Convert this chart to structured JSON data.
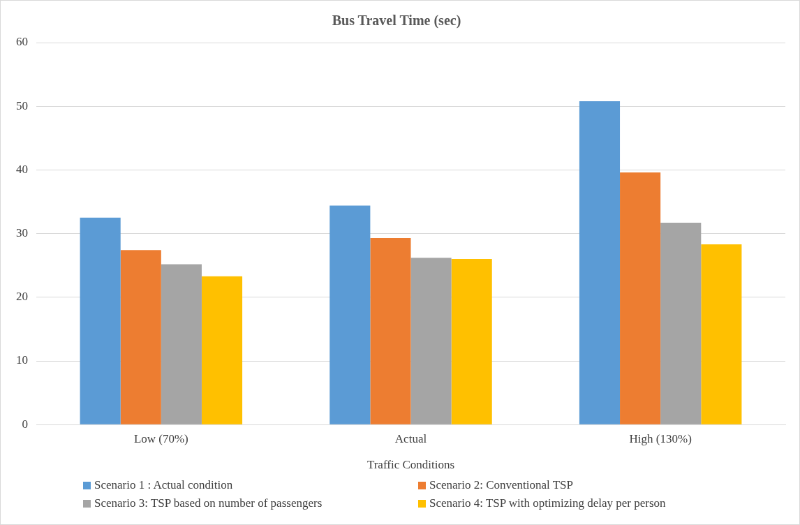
{
  "chart_data": {
    "type": "bar",
    "title": "Bus Travel Time (sec)",
    "xlabel": "Traffic Conditions",
    "categories": [
      "Low (70%)",
      "Actual",
      "High (130%)"
    ],
    "series": [
      {
        "name": "Scenario 1 : Actual condition",
        "color": "#5b9bd5",
        "values": [
          32.5,
          34.4,
          50.8
        ]
      },
      {
        "name": "Scenario 2: Conventional TSP",
        "color": "#ed7d31",
        "values": [
          27.4,
          29.3,
          39.6
        ]
      },
      {
        "name": "Scenario 3: TSP based on number of passengers",
        "color": "#a5a5a5",
        "values": [
          25.2,
          26.2,
          31.7
        ]
      },
      {
        "name": "Scenario 4: TSP with optimizing delay per person",
        "color": "#ffc000",
        "values": [
          23.3,
          26.0,
          28.3
        ]
      }
    ],
    "ylim": [
      0,
      60
    ],
    "yticks": [
      0,
      10,
      20,
      30,
      40,
      50,
      60
    ],
    "grid": "y",
    "legend": "bottom"
  }
}
